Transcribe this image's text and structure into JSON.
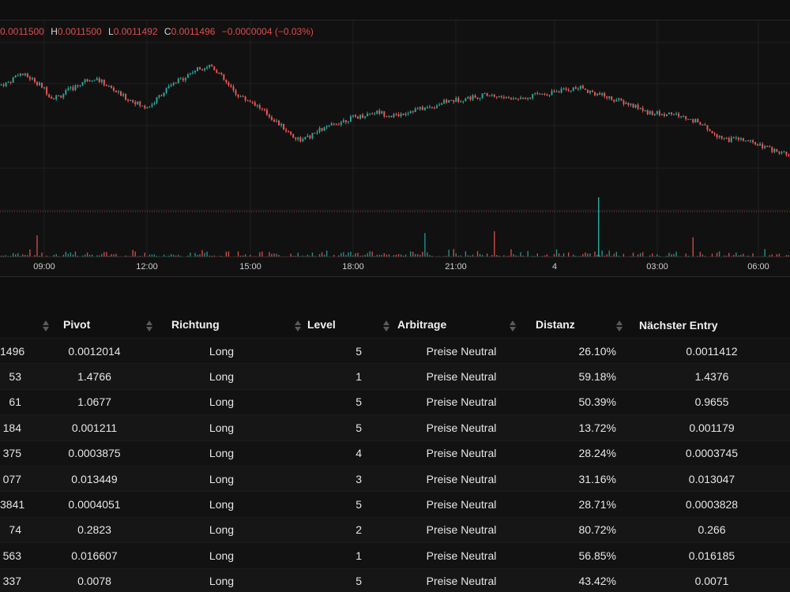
{
  "chart": {
    "ohlc": {
      "o_label": "",
      "o_value": "0.0011500",
      "h_label": "H",
      "h_value": "0.0011500",
      "l_label": "L",
      "l_value": "0.0011492",
      "c_label": "C",
      "c_value": "0.0011496",
      "change": "−0.0000004 (−0.03%)"
    },
    "time_ticks": [
      "09:00",
      "12:00",
      "15:00",
      "18:00",
      "21:00",
      "4",
      "03:00",
      "06:00"
    ],
    "colors": {
      "up": "#26a69a",
      "down": "#ef5350",
      "grid": "#1f1f1f",
      "reference_line": "#b83a3a"
    }
  },
  "chart_data": {
    "type": "candlestick",
    "x_ticks": [
      "09:00",
      "12:00",
      "15:00",
      "18:00",
      "21:00",
      "4",
      "03:00",
      "06:00"
    ],
    "price_path": [
      0.52,
      0.54,
      0.6,
      0.58,
      0.55,
      0.5,
      0.43,
      0.44,
      0.48,
      0.51,
      0.55,
      0.57,
      0.54,
      0.5,
      0.46,
      0.42,
      0.4,
      0.36,
      0.38,
      0.45,
      0.5,
      0.54,
      0.58,
      0.62,
      0.64,
      0.66,
      0.6,
      0.52,
      0.46,
      0.42,
      0.4,
      0.35,
      0.3,
      0.25,
      0.2,
      0.15,
      0.13,
      0.16,
      0.2,
      0.22,
      0.25,
      0.27,
      0.29,
      0.3,
      0.32,
      0.33,
      0.31,
      0.3,
      0.32,
      0.34,
      0.35,
      0.36,
      0.38,
      0.4,
      0.41,
      0.42,
      0.43,
      0.44,
      0.45,
      0.44,
      0.43,
      0.42,
      0.43,
      0.44,
      0.45,
      0.46,
      0.47,
      0.48,
      0.49,
      0.5,
      0.48,
      0.46,
      0.44,
      0.42,
      0.4,
      0.38,
      0.36,
      0.33,
      0.32,
      0.31,
      0.32,
      0.3,
      0.28,
      0.26,
      0.22,
      0.18,
      0.15,
      0.13,
      0.14,
      0.12,
      0.1,
      0.08,
      0.06,
      0.04,
      0.02
    ],
    "reference_level": 0.0
  },
  "table": {
    "columns": [
      {
        "key": "first",
        "label": ""
      },
      {
        "key": "pivot",
        "label": "Pivot"
      },
      {
        "key": "direction",
        "label": "Richtung"
      },
      {
        "key": "level",
        "label": "Level"
      },
      {
        "key": "arbitrage",
        "label": "Arbitrage"
      },
      {
        "key": "distance",
        "label": "Distanz"
      },
      {
        "key": "next_entry",
        "label": "Nächster Entry"
      }
    ],
    "rows": [
      {
        "first": "1496",
        "pivot": "0.0012014",
        "direction": "Long",
        "level": "5",
        "arbitrage": "Preise Neutral",
        "distance": "26.10%",
        "next_entry": "0.0011412"
      },
      {
        "first": "53",
        "pivot": "1.4766",
        "direction": "Long",
        "level": "1",
        "arbitrage": "Preise Neutral",
        "distance": "59.18%",
        "next_entry": "1.4376"
      },
      {
        "first": "61",
        "pivot": "1.0677",
        "direction": "Long",
        "level": "5",
        "arbitrage": "Preise Neutral",
        "distance": "50.39%",
        "next_entry": "0.9655"
      },
      {
        "first": "184",
        "pivot": "0.001211",
        "direction": "Long",
        "level": "5",
        "arbitrage": "Preise Neutral",
        "distance": "13.72%",
        "next_entry": "0.001179"
      },
      {
        "first": "375",
        "pivot": "0.0003875",
        "direction": "Long",
        "level": "4",
        "arbitrage": "Preise Neutral",
        "distance": "28.24%",
        "next_entry": "0.0003745"
      },
      {
        "first": "077",
        "pivot": "0.013449",
        "direction": "Long",
        "level": "3",
        "arbitrage": "Preise Neutral",
        "distance": "31.16%",
        "next_entry": "0.013047"
      },
      {
        "first": "3841",
        "pivot": "0.0004051",
        "direction": "Long",
        "level": "5",
        "arbitrage": "Preise Neutral",
        "distance": "28.71%",
        "next_entry": "0.0003828"
      },
      {
        "first": "74",
        "pivot": "0.2823",
        "direction": "Long",
        "level": "2",
        "arbitrage": "Preise Neutral",
        "distance": "80.72%",
        "next_entry": "0.266"
      },
      {
        "first": "563",
        "pivot": "0.016607",
        "direction": "Long",
        "level": "1",
        "arbitrage": "Preise Neutral",
        "distance": "56.85%",
        "next_entry": "0.016185"
      },
      {
        "first": "337",
        "pivot": "0.0078",
        "direction": "Long",
        "level": "5",
        "arbitrage": "Preise Neutral",
        "distance": "43.42%",
        "next_entry": "0.0071"
      }
    ]
  }
}
